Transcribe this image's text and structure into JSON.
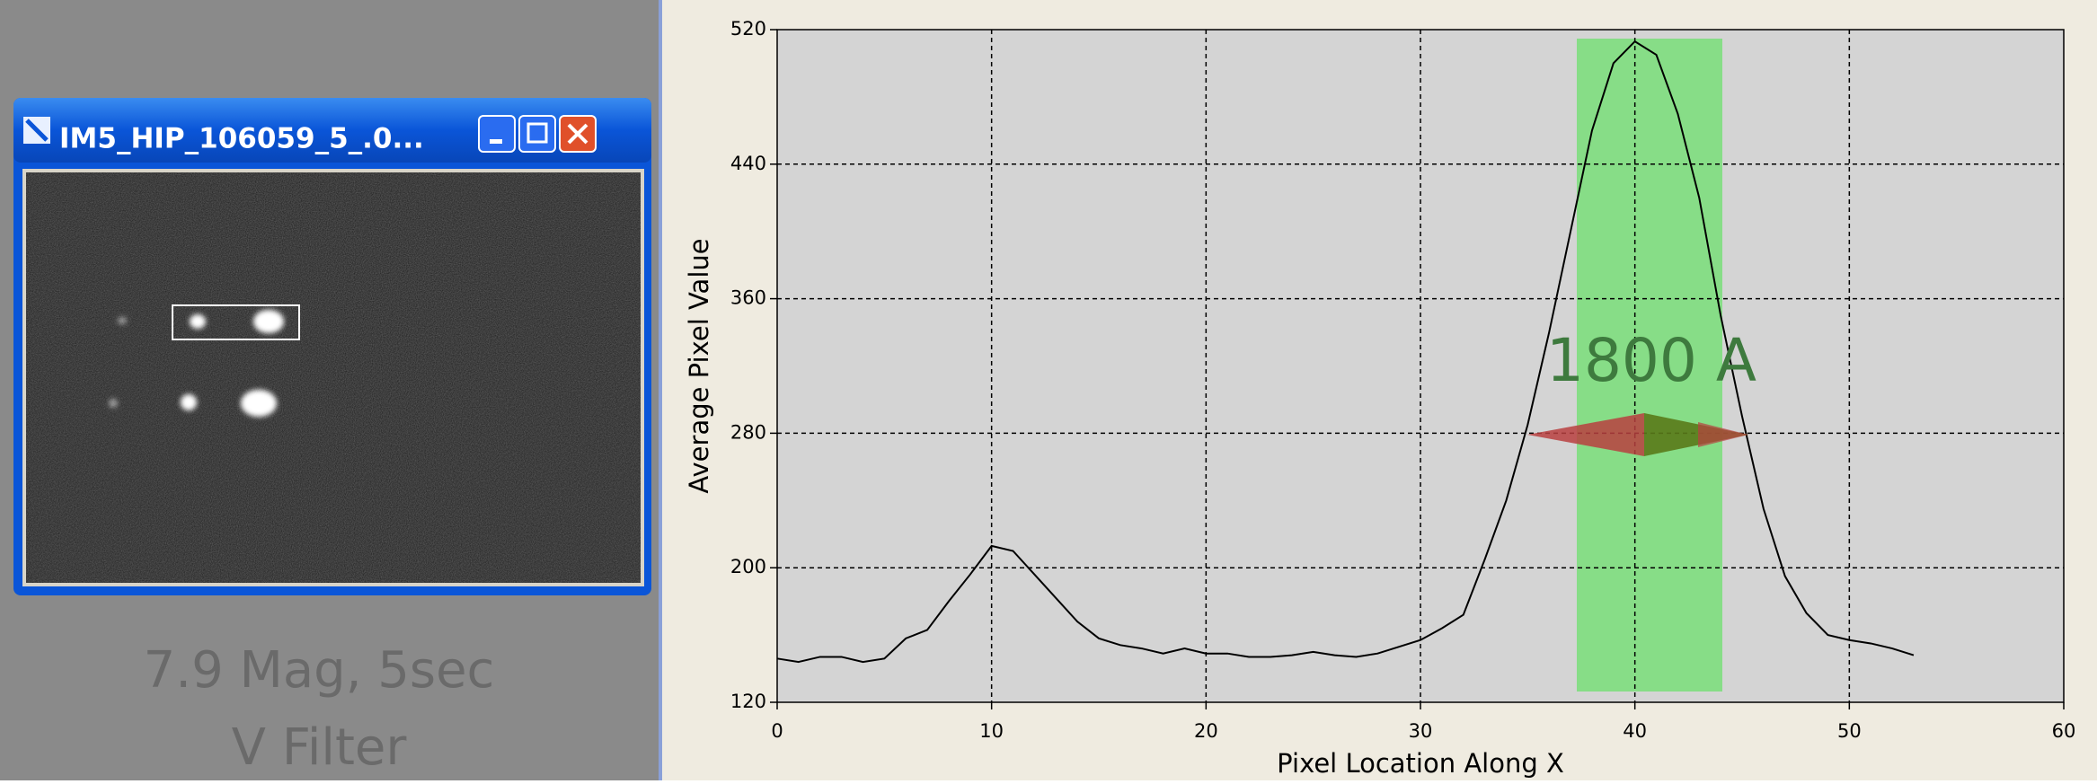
{
  "window": {
    "title": "IM5_HIP_106059_5_.0..."
  },
  "caption": {
    "lines": [
      "7.9 Mag, 5sec",
      "V Filter"
    ]
  },
  "chart_data": {
    "type": "line",
    "x_label": "Pixel Location Along X",
    "y_label": "Average Pixel Value",
    "annotation": "1800 A",
    "x": [
      0,
      1,
      2,
      3,
      4,
      5,
      6,
      7,
      8,
      9,
      10,
      11,
      12,
      13,
      14,
      15,
      16,
      17,
      18,
      19,
      20,
      21,
      22,
      23,
      24,
      25,
      26,
      27,
      28,
      29,
      30,
      31,
      32,
      33,
      34,
      35,
      36,
      37,
      38,
      39,
      40,
      41,
      42,
      43,
      44,
      45,
      46,
      47,
      48,
      49,
      50,
      51,
      52,
      53
    ],
    "series": [
      {
        "name": "Average Pixel Value",
        "color": "#000000",
        "values": [
          146,
          144,
          147,
          147,
          144,
          146,
          158,
          163,
          180,
          196,
          213,
          210,
          196,
          182,
          168,
          158,
          154,
          152,
          149,
          152,
          149,
          149,
          147,
          147,
          148,
          150,
          148,
          147,
          149,
          153,
          157,
          164,
          172,
          205,
          240,
          285,
          340,
          400,
          460,
          500,
          513,
          505,
          470,
          420,
          350,
          290,
          235,
          195,
          173,
          160,
          157,
          155,
          152,
          148
        ]
      }
    ],
    "xlim": [
      0,
      60
    ],
    "ylim": [
      120,
      520
    ],
    "xticks": [
      0,
      10,
      20,
      30,
      40,
      50,
      60
    ],
    "yticks": [
      120,
      200,
      280,
      360,
      440,
      520
    ],
    "grid": true
  }
}
